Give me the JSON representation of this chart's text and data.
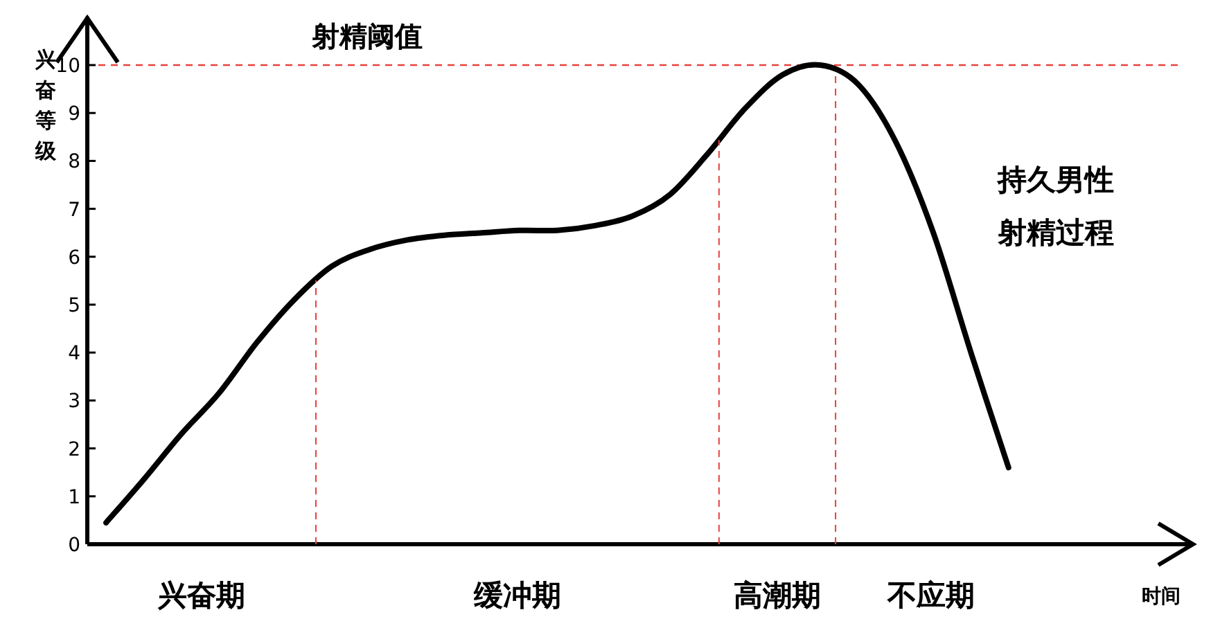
{
  "chart_data": {
    "type": "line",
    "ylabel": "兴奋等级",
    "xlabel": "时间",
    "categories": [
      null,
      null,
      null,
      null,
      null,
      null,
      null,
      null,
      null,
      null,
      null,
      null,
      null,
      null,
      null,
      null,
      null,
      null,
      null,
      null,
      null,
      null,
      null,
      null,
      null,
      null,
      null,
      null,
      null
    ],
    "series": [
      {
        "color": "#000000",
        "values": [
          0.45,
          1.35,
          2.3,
          3.15,
          4.2,
          5.1,
          5.8,
          6.15,
          6.35,
          6.45,
          6.5,
          6.55,
          6.55,
          6.65,
          6.85,
          7.3,
          8.15,
          9.1,
          9.8,
          10,
          9.6,
          8.4,
          6.5,
          4.0,
          1.6,
          null,
          null,
          null,
          null
        ]
      }
    ],
    "ylim": [
      0,
      10
    ],
    "yticks": [
      0,
      1,
      2,
      3,
      4,
      5,
      6,
      7,
      8,
      9,
      10
    ],
    "tick_labels": "y",
    "grid": false,
    "marker": "none",
    "line_style": "solid",
    "ref_lines": [
      {
        "axis": "y",
        "value": 10,
        "label": "射精阈值",
        "color": "#e8413c",
        "line_style": "dashed"
      }
    ],
    "annotations": [
      "兴奋期",
      "缓冲期",
      "高潮期",
      "不应期",
      "持久男性",
      "射精过程"
    ]
  }
}
